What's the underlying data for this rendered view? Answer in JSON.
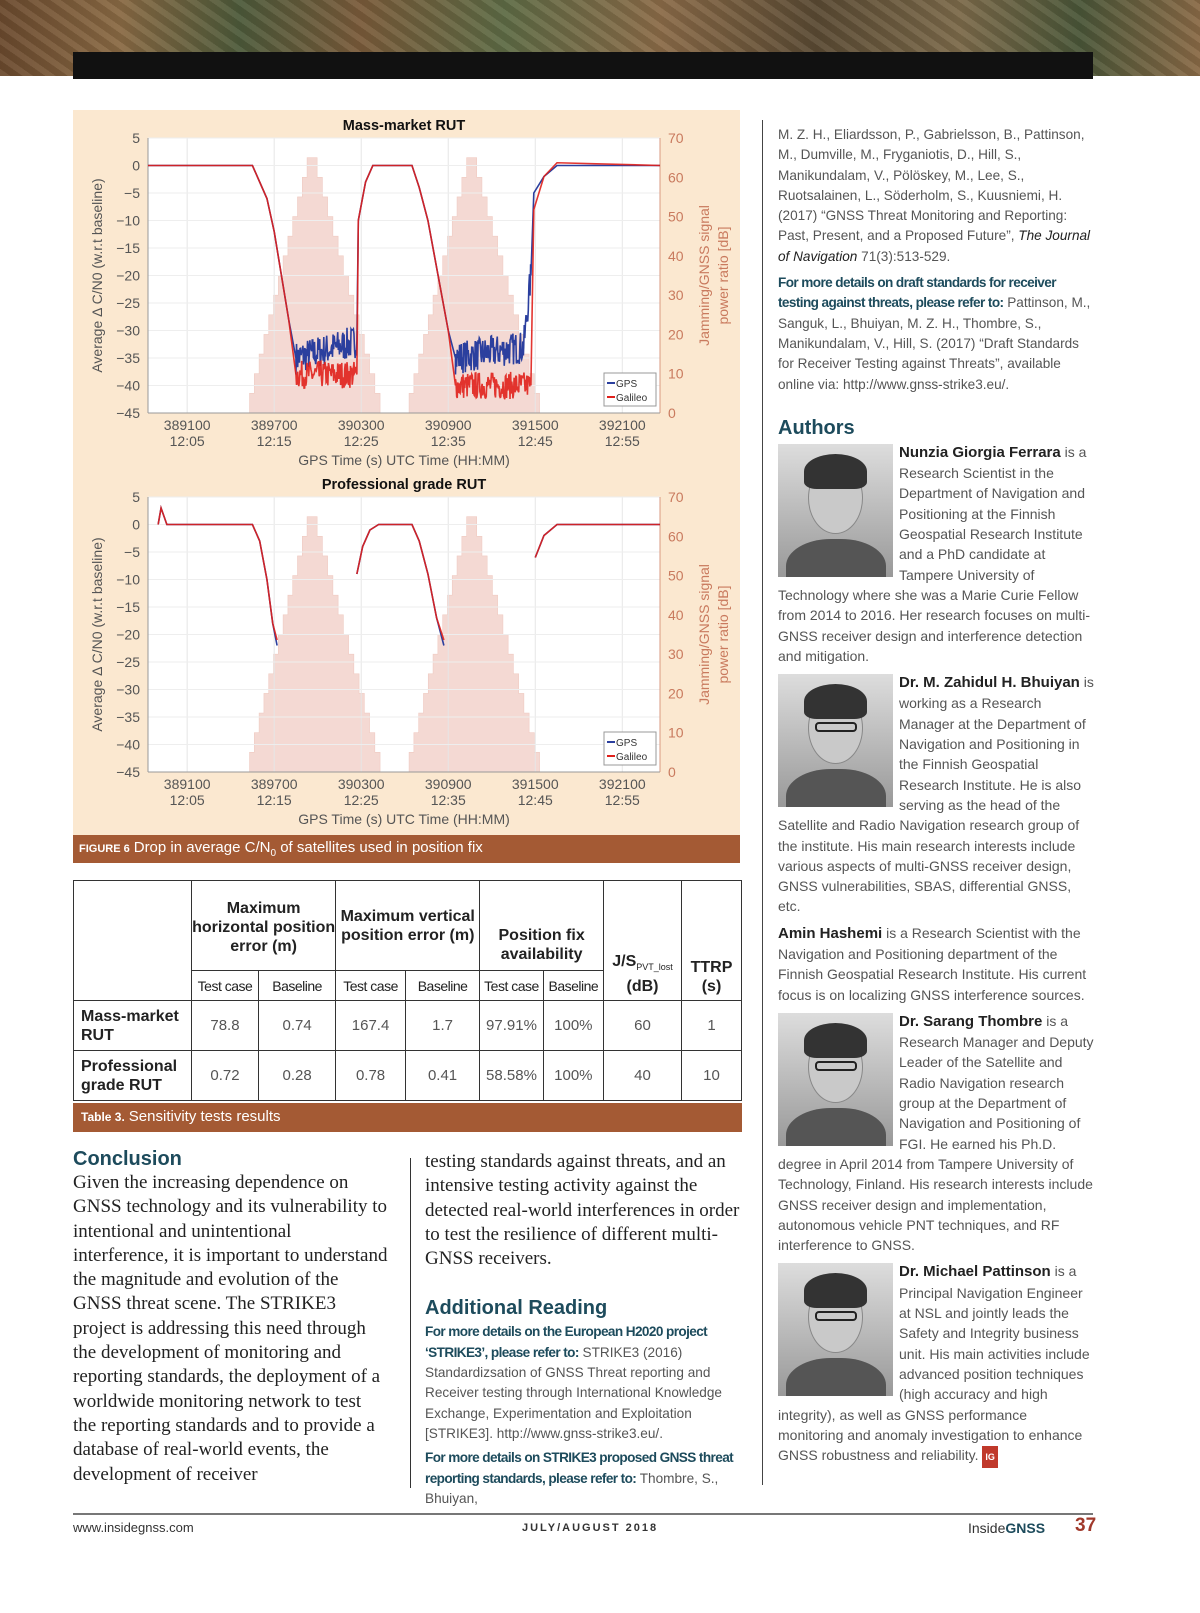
{
  "figure": {
    "caption_label": "FIGURE 6",
    "caption_text": "Drop in average C/N",
    "caption_sub": "0",
    "caption_rest": " of satellites used in position fix",
    "colors": {
      "gps": "#2b3f9e",
      "galileo": "#e0201b",
      "jamming": "#f3d3cc",
      "panel": "#fbe8d0",
      "caption": "#a45a34"
    }
  },
  "chart_data": [
    {
      "type": "line",
      "title": "Mass-market RUT",
      "xlabel": "GPS Time (s) UTC Time (HH:MM)",
      "ylabel": "Average Δ C/N0 (w.r.t baseline)",
      "ylabel_right_1": "Jamming/GNSS signal",
      "ylabel_right_2": "power ratio [dB]",
      "xlim": [
        388830,
        392360
      ],
      "ylim": [
        -45,
        5
      ],
      "ylim_right": [
        0,
        70
      ],
      "xticks": [
        389100,
        389700,
        390300,
        390900,
        391500,
        392100
      ],
      "xtick_times": [
        "12:05",
        "12:15",
        "12:25",
        "12:35",
        "12:45",
        "12:55"
      ],
      "yticks": [
        5,
        0,
        -5,
        -10,
        -15,
        -20,
        -25,
        -30,
        -35,
        -40,
        -45
      ],
      "yticks_right": [
        70,
        60,
        50,
        40,
        30,
        20,
        10,
        0
      ],
      "legend": [
        "GPS",
        "Galileo"
      ],
      "legend_position": "bottom-right",
      "jamming": [
        {
          "start": 389530,
          "peak": 389960,
          "end": 390430,
          "start_db": 5,
          "peak_db": 65
        },
        {
          "start": 390630,
          "peak": 391060,
          "end": 391530,
          "start_db": 5,
          "peak_db": 65
        }
      ],
      "series": [
        {
          "name": "GPS",
          "points": [
            [
              388830,
              0
            ],
            [
              388900,
              0
            ],
            [
              389550,
              0
            ],
            [
              389600,
              -3
            ],
            [
              389650,
              -6
            ],
            [
              389700,
              -12
            ],
            [
              389750,
              -20
            ],
            [
              389800,
              -28
            ],
            [
              389850,
              -35
            ],
            [
              390270,
              -32
            ],
            [
              390280,
              -10
            ],
            [
              390330,
              -3
            ],
            [
              390380,
              0
            ],
            [
              390650,
              0
            ],
            [
              390700,
              -4
            ],
            [
              390760,
              -10
            ],
            [
              390830,
              -20
            ],
            [
              390900,
              -30
            ],
            [
              390950,
              -35
            ],
            [
              391420,
              -33
            ],
            [
              391470,
              -20
            ],
            [
              391490,
              -5
            ],
            [
              391560,
              -2
            ],
            [
              391650,
              0
            ],
            [
              392360,
              0
            ]
          ],
          "noise_ranges": [
            [
              389820,
              390270,
              3
            ],
            [
              390930,
              391470,
              3
            ]
          ]
        },
        {
          "name": "Galileo",
          "points": [
            [
              388830,
              0
            ],
            [
              388900,
              0
            ],
            [
              389550,
              0
            ],
            [
              389600,
              -3
            ],
            [
              389650,
              -6
            ],
            [
              389700,
              -12
            ],
            [
              389750,
              -20
            ],
            [
              389800,
              -28
            ],
            [
              389850,
              -38
            ],
            [
              390270,
              -38
            ],
            [
              390280,
              -10
            ],
            [
              390330,
              -3
            ],
            [
              390380,
              0
            ],
            [
              390650,
              0
            ],
            [
              390700,
              -4
            ],
            [
              390760,
              -10
            ],
            [
              390830,
              -20
            ],
            [
              390900,
              -30
            ],
            [
              390950,
              -40
            ],
            [
              391470,
              -40
            ],
            [
              391490,
              -8
            ],
            [
              391560,
              -2
            ],
            [
              391650,
              0.5
            ],
            [
              392360,
              0
            ]
          ],
          "noise_ranges": [
            [
              389820,
              390270,
              2.5
            ],
            [
              390930,
              391470,
              2.5
            ]
          ]
        }
      ]
    },
    {
      "type": "line",
      "title": "Professional grade RUT",
      "xlabel": "GPS Time (s) UTC Time (HH:MM)",
      "ylabel": "Average Δ C/N0 (w.r.t baseline)",
      "ylabel_right_1": "Jamming/GNSS signal",
      "ylabel_right_2": "power ratio [dB]",
      "xlim": [
        388830,
        392360
      ],
      "ylim": [
        -45,
        5
      ],
      "ylim_right": [
        0,
        70
      ],
      "xticks": [
        389100,
        389700,
        390300,
        390900,
        391500,
        392100
      ],
      "xtick_times": [
        "12:05",
        "12:15",
        "12:25",
        "12:35",
        "12:45",
        "12:55"
      ],
      "yticks": [
        5,
        0,
        -5,
        -10,
        -15,
        -20,
        -25,
        -30,
        -35,
        -40,
        -45
      ],
      "yticks_right": [
        70,
        60,
        50,
        40,
        30,
        20,
        10,
        0
      ],
      "legend": [
        "GPS",
        "Galileo"
      ],
      "legend_position": "bottom-right",
      "jamming": [
        {
          "start": 389530,
          "peak": 389960,
          "end": 390430,
          "start_db": 5,
          "peak_db": 65
        },
        {
          "start": 390630,
          "peak": 391060,
          "end": 391530,
          "start_db": 5,
          "peak_db": 65
        }
      ],
      "series": [
        {
          "name": "GPS",
          "segments": [
            [
              [
                388900,
                0
              ],
              [
                388920,
                3
              ],
              [
                388960,
                0
              ],
              [
                389550,
                0
              ],
              [
                389600,
                -3
              ],
              [
                389650,
                -10
              ],
              [
                389690,
                -18
              ],
              [
                389720,
                -22
              ]
            ],
            [
              [
                390270,
                -9
              ],
              [
                390310,
                -4
              ],
              [
                390360,
                -1
              ],
              [
                390420,
                0
              ],
              [
                390650,
                0
              ],
              [
                390700,
                -3
              ],
              [
                390760,
                -9
              ],
              [
                390820,
                -17
              ],
              [
                390870,
                -22
              ]
            ],
            [
              [
                391500,
                -6
              ],
              [
                391560,
                -2
              ],
              [
                391650,
                0
              ],
              [
                392360,
                0
              ]
            ]
          ]
        },
        {
          "name": "Galileo",
          "segments": [
            [
              [
                388900,
                0
              ],
              [
                388920,
                3
              ],
              [
                388960,
                0
              ],
              [
                389550,
                0
              ],
              [
                389600,
                -3
              ],
              [
                389650,
                -10
              ],
              [
                389690,
                -18
              ],
              [
                389720,
                -21
              ]
            ],
            [
              [
                390270,
                -9
              ],
              [
                390310,
                -4
              ],
              [
                390360,
                -1
              ],
              [
                390420,
                0
              ],
              [
                390650,
                0
              ],
              [
                390700,
                -3
              ],
              [
                390760,
                -9
              ],
              [
                390820,
                -17
              ],
              [
                390870,
                -21
              ]
            ],
            [
              [
                391500,
                -6
              ],
              [
                391560,
                -2
              ],
              [
                391650,
                0
              ],
              [
                392360,
                0
              ]
            ]
          ]
        }
      ]
    }
  ],
  "table": {
    "groups": [
      "Maximum horizontal position error (m)",
      "Maximum vertical position error (m)",
      "Position fix availability"
    ],
    "js_label": "J/S",
    "js_sub": "PVT_lost",
    "js_unit": "(dB)",
    "ttrp": "TTRP",
    "ttrp_unit": "(s)",
    "sub": [
      "Test case",
      "Baseline",
      "Test case",
      "Baseline",
      "Test case",
      "Baseline"
    ],
    "rows": [
      {
        "label": "Mass-market RUT",
        "values": [
          "78.8",
          "0.74",
          "167.4",
          "1.7",
          "97.91%",
          "100%",
          "60",
          "1"
        ]
      },
      {
        "label": "Professional grade RUT",
        "values": [
          "0.72",
          "0.28",
          "0.78",
          "0.41",
          "58.58%",
          "100%",
          "40",
          "10"
        ]
      }
    ],
    "caption_label": "Table 3.",
    "caption_text": "Sensitivity tests results"
  },
  "conclusion": {
    "heading": "Conclusion",
    "text1": "Given the increasing dependence on GNSS technology and its vulnerability to intentional and unintentional interference, it is important to understand the magnitude and evolution of the GNSS threat scene. The STRIKE3 project is addressing this need through the development of monitoring and reporting standards, the deployment of a worldwide monitoring network to test the reporting standards and to provide a database of real-world events, the development of receiver",
    "text2": "testing standards against threats, and an intensive testing activity against the detected real-world interferences in order to test the resilience of different multi-GNSS receivers."
  },
  "reading": {
    "heading": "Additional Reading",
    "refs": [
      {
        "lead": "For more details on the European H2020 project ‘STRIKE3’, please refer to:",
        "text": " STRIKE3 (2016) Standardizsation of GNSS Threat reporting and Receiver testing through International Knowledge Exchange, Experimentation and Exploitation [STRIKE3]. http://www.gnss-strike3.eu/."
      },
      {
        "lead": "For more details on STRIKE3 proposed GNSS threat reporting standards, please refer to:",
        "text": " Thombre, S., Bhuiyan,",
        "text_cont": "M. Z. H., Eliardsson, P., Gabrielsson, B., Pattinson, M., Dumville, M., Fryganiotis, D., Hill, S., Manikundalam, V., Pölöskey, M., Lee, S., Ruotsalainen, L., Söderholm, S., Kuusniemi, H. (2017) “GNSS Threat Monitoring and Reporting: Past, Present, and a Proposed Future”, ",
        "journal": "The Journal of Navigation",
        "volume": " 71(3):513-529."
      },
      {
        "lead": "For more details on draft standards for receiver testing against threats, please refer to:",
        "text": " Pattinson, M., Sanguk, L., Bhuiyan, M. Z. H., Thombre, S., Manikundalam, V., Hill, S. (2017) “Draft Standards for Receiver Testing against Threats”, available online via: http://www.gnss-strike3.eu/."
      }
    ]
  },
  "authors": {
    "heading": "Authors",
    "bios": [
      {
        "name": "Nunzia Giorgia Ferrara",
        "text": " is a Research Scientist in the Department of Navigation and Positioning at the Finnish Geospatial Research Institute and a PhD candidate at Tampere University of Technology where she was a Marie Curie Fellow from 2014 to 2016. Her research focuses on multi-GNSS receiver design and interference detection and mitigation.",
        "photo": true
      },
      {
        "name": "Dr. M. Zahidul H. Bhuiyan",
        "text": " is working as a Research Manager at the Department of Navigation and Positioning in the Finnish Geospatial Research Institute. He is also serving as the head of the Satellite and Radio Navigation research group of the institute. His main research interests include various aspects of multi-GNSS receiver design, GNSS vulnerabilities, SBAS, differential GNSS, etc.",
        "photo": true
      },
      {
        "name": "Amin Hashemi",
        "text": " is a Research Scientist with the Navigation and Positioning department of the Finnish Geospatial Research Institute. His current focus is on localizing GNSS interference sources.",
        "photo": false
      },
      {
        "name": "Dr. Sarang Thombre",
        "text": " is a Research Manager and Deputy Leader of the Satellite and Radio Navigation research group at the Department of Navigation and Positioning of FGI. He earned his Ph.D. degree in April 2014 from Tampere University of Technology, Finland. His research interests include GNSS receiver design and implementation, autonomous vehicle PNT techniques, and RF interference to GNSS.",
        "photo": true
      },
      {
        "name": "Dr. Michael Pattinson",
        "text": " is a Principal Navigation Engineer at NSL and jointly leads the Safety and Integrity business unit. His main activities include advanced position techniques (high accuracy and high integrity), as well as GNSS performance monitoring and anomaly investigation to enhance GNSS robustness and reliability.",
        "photo": true
      }
    ],
    "end_mark": "IG"
  },
  "footer": {
    "url": "www.insidegnss.com",
    "issue": "JULY/AUGUST 2018",
    "brand_a": "Inside",
    "brand_b": "GNSS",
    "page": "37"
  }
}
